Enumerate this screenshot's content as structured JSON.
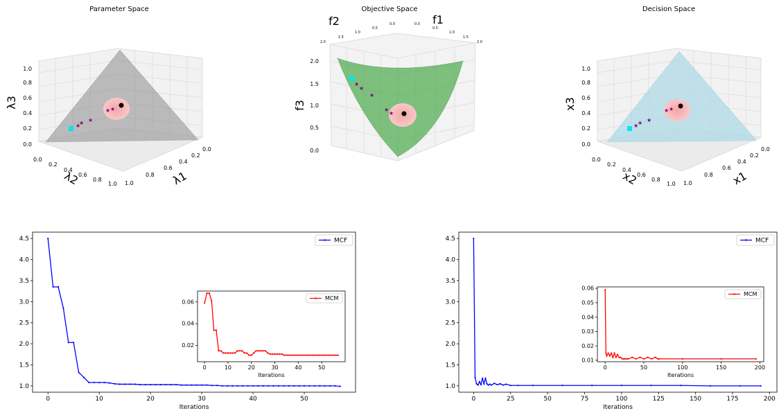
{
  "chart_data": [
    {
      "type": "scatter",
      "panel": "3d",
      "title": "Parameter Space",
      "xlabel": "λ1",
      "ylabel": "λ2",
      "zlabel": "λ3",
      "x_ticks": [
        "0.0",
        "0.2",
        "0.4",
        "0.6",
        "0.8",
        "1.0"
      ],
      "y_ticks": [
        "0.0",
        "0.2",
        "0.4",
        "0.6",
        "0.8",
        "1.0"
      ],
      "z_ticks": [
        "0.0",
        "0.2",
        "0.4",
        "0.6",
        "0.8",
        "1.0"
      ],
      "surface_color": "#808080",
      "region_color": "#f08080",
      "start_color": "#00e5ee",
      "path_color": "#800080"
    },
    {
      "type": "scatter",
      "panel": "3d",
      "title": "Objective Space",
      "xlabel": "f1",
      "ylabel": "f2",
      "zlabel": "f3",
      "x_ticks": [
        "0.0",
        "0.5",
        "1.0",
        "1.5",
        "2.0"
      ],
      "y_ticks": [
        "2.0",
        "1.5",
        "1.0",
        "0.5",
        "0.0"
      ],
      "z_ticks": [
        "0.0",
        "0.5",
        "1.0",
        "1.5",
        "2.0"
      ],
      "surface_color": "#3a9a3a",
      "region_color": "#f08080",
      "start_color": "#00e5ee",
      "path_color": "#800080"
    },
    {
      "type": "scatter",
      "panel": "3d",
      "title": "Decision Space",
      "xlabel": "x1",
      "ylabel": "x2",
      "zlabel": "x3",
      "x_ticks": [
        "0.0",
        "0.2",
        "0.4",
        "0.6",
        "0.8",
        "1.0"
      ],
      "y_ticks": [
        "0.0",
        "0.2",
        "0.4",
        "0.6",
        "0.8",
        "1.0"
      ],
      "z_ticks": [
        "0.0",
        "0.2",
        "0.4",
        "0.6",
        "0.8",
        "1.0"
      ],
      "surface_color": "#add8e6",
      "region_color": "#f08080",
      "start_color": "#00e5ee",
      "path_color": "#800080"
    },
    {
      "type": "line",
      "xlabel": "Iterations",
      "xlim": [
        -3,
        60
      ],
      "ylim": [
        0.85,
        4.65
      ],
      "x_ticks": [
        0,
        10,
        20,
        30,
        40,
        50
      ],
      "y_ticks": [
        1.0,
        1.5,
        2.0,
        2.5,
        3.0,
        3.5,
        4.0,
        4.5
      ],
      "legend": "top-right",
      "series": [
        {
          "name": "MCF",
          "color": "#0000ff",
          "x": [
            0,
            1,
            2,
            3,
            4,
            5,
            6,
            7,
            8,
            9,
            10,
            11,
            12,
            13,
            14,
            15,
            16,
            17,
            18,
            19,
            20,
            21,
            22,
            23,
            24,
            25,
            26,
            27,
            28,
            29,
            30,
            31,
            32,
            33,
            34,
            35,
            36,
            37,
            38,
            39,
            40,
            41,
            42,
            43,
            44,
            45,
            46,
            47,
            48,
            49,
            50,
            51,
            52,
            53,
            54,
            55,
            56,
            57
          ],
          "y": [
            4.5,
            3.35,
            3.35,
            2.85,
            2.03,
            2.03,
            1.32,
            1.2,
            1.08,
            1.08,
            1.08,
            1.08,
            1.07,
            1.05,
            1.04,
            1.04,
            1.04,
            1.04,
            1.03,
            1.03,
            1.03,
            1.03,
            1.03,
            1.03,
            1.03,
            1.03,
            1.02,
            1.02,
            1.02,
            1.02,
            1.02,
            1.02,
            1.01,
            1.01,
            1.0,
            1.0,
            1.0,
            1.0,
            1.0,
            1.0,
            1.0,
            1.0,
            1.0,
            1.0,
            1.0,
            1.0,
            1.0,
            1.0,
            1.0,
            1.0,
            1.0,
            1.0,
            1.0,
            1.0,
            1.0,
            1.0,
            1.0,
            0.99
          ]
        }
      ],
      "inset": {
        "xlabel": "Iterations",
        "xlim": [
          -3,
          60
        ],
        "ylim": [
          0.005,
          0.07
        ],
        "x_ticks": [
          0,
          10,
          20,
          30,
          40,
          50
        ],
        "y_ticks": [
          0.02,
          0.04,
          0.06
        ],
        "legend": "top-right",
        "series": [
          {
            "name": "MCM",
            "color": "#ff0000",
            "x": [
              0,
              1,
              2,
              3,
              4,
              5,
              6,
              7,
              8,
              9,
              10,
              11,
              12,
              13,
              14,
              15,
              16,
              17,
              18,
              19,
              20,
              21,
              22,
              23,
              24,
              25,
              26,
              27,
              28,
              29,
              30,
              31,
              32,
              33,
              34,
              35,
              36,
              37,
              38,
              39,
              40,
              41,
              42,
              43,
              44,
              45,
              46,
              47,
              48,
              49,
              50,
              51,
              52,
              53,
              54,
              55,
              56,
              57
            ],
            "y": [
              0.059,
              0.068,
              0.068,
              0.061,
              0.034,
              0.034,
              0.015,
              0.015,
              0.013,
              0.013,
              0.013,
              0.013,
              0.013,
              0.013,
              0.015,
              0.015,
              0.015,
              0.013,
              0.013,
              0.011,
              0.011,
              0.013,
              0.015,
              0.015,
              0.015,
              0.015,
              0.015,
              0.013,
              0.012,
              0.012,
              0.012,
              0.012,
              0.012,
              0.012,
              0.011,
              0.011,
              0.011,
              0.011,
              0.011,
              0.011,
              0.011,
              0.011,
              0.011,
              0.011,
              0.011,
              0.011,
              0.011,
              0.011,
              0.011,
              0.011,
              0.011,
              0.011,
              0.011,
              0.011,
              0.011,
              0.011,
              0.011,
              0.011
            ]
          }
        ]
      }
    },
    {
      "type": "line",
      "xlabel": "Iterations",
      "xlim": [
        -10,
        205
      ],
      "ylim": [
        0.85,
        4.65
      ],
      "x_ticks": [
        0,
        25,
        50,
        75,
        100,
        125,
        150,
        175,
        200
      ],
      "y_ticks": [
        1.0,
        1.5,
        2.0,
        2.5,
        3.0,
        3.5,
        4.0,
        4.5
      ],
      "legend": "top-right",
      "series": [
        {
          "name": "MCF",
          "color": "#0000ff",
          "x": [
            0,
            1,
            2,
            3,
            4,
            5,
            6,
            7,
            8,
            9,
            10,
            11,
            12,
            14,
            16,
            18,
            20,
            22,
            25,
            30,
            40,
            60,
            80,
            100,
            120,
            140,
            160,
            180,
            194
          ],
          "y": [
            4.5,
            1.2,
            1.05,
            1.02,
            1.1,
            1.03,
            1.18,
            1.05,
            1.18,
            1.05,
            1.02,
            1.04,
            1.02,
            1.06,
            1.03,
            1.05,
            1.02,
            1.04,
            1.01,
            1.01,
            1.01,
            1.01,
            1.01,
            1.01,
            1.01,
            1.01,
            1.0,
            1.0,
            1.0
          ]
        }
      ],
      "inset": {
        "xlabel": "Iterations",
        "xlim": [
          -10,
          205
        ],
        "ylim": [
          0.009,
          0.061
        ],
        "x_ticks": [
          0,
          50,
          100,
          150,
          200
        ],
        "y_ticks": [
          0.01,
          0.02,
          0.03,
          0.04,
          0.05,
          0.06
        ],
        "legend": "top-right",
        "series": [
          {
            "name": "MCM",
            "color": "#ff0000",
            "x": [
              0,
              1,
              2,
              4,
              6,
              8,
              10,
              12,
              14,
              16,
              18,
              20,
              22,
              24,
              26,
              28,
              30,
              35,
              40,
              45,
              50,
              55,
              60,
              65,
              68,
              70,
              100,
              150,
              195
            ],
            "y": [
              0.059,
              0.015,
              0.013,
              0.015,
              0.013,
              0.015,
              0.012,
              0.015,
              0.012,
              0.014,
              0.012,
              0.012,
              0.011,
              0.011,
              0.011,
              0.011,
              0.011,
              0.012,
              0.011,
              0.012,
              0.011,
              0.012,
              0.011,
              0.012,
              0.011,
              0.011,
              0.011,
              0.011,
              0.011
            ]
          }
        ]
      }
    }
  ]
}
